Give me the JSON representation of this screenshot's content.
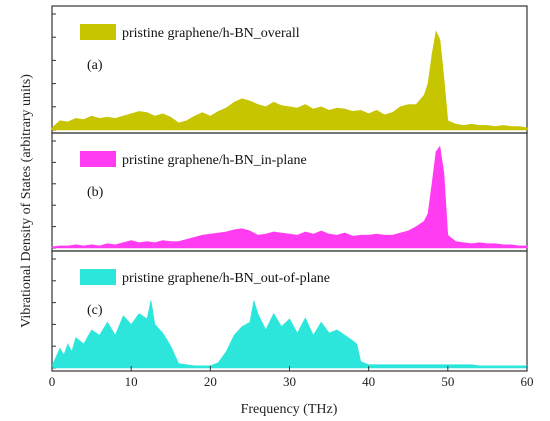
{
  "chart_data": {
    "type": "area",
    "xlabel": "Frequency (THz)",
    "ylabel": "Vibrational Density of States (arbitrary units)",
    "xlim": [
      0,
      60
    ],
    "xticks": [
      "0",
      "10",
      "20",
      "30",
      "40",
      "50",
      "60"
    ],
    "yticks_labeled": false,
    "grid": false,
    "panels": [
      {
        "label": "(a)",
        "legend": "pristine graphene/h-BN_overall",
        "color": "#c7c400",
        "x": [
          0,
          1,
          2,
          3,
          4,
          5,
          6,
          7,
          8,
          9,
          10,
          11,
          12,
          13,
          14,
          15,
          16,
          17,
          18,
          19,
          20,
          21,
          22,
          23,
          24,
          25,
          26,
          27,
          28,
          29,
          30,
          31,
          32,
          33,
          34,
          35,
          36,
          37,
          38,
          39,
          40,
          41,
          42,
          43,
          44,
          45,
          46,
          47,
          47.5,
          48,
          48.5,
          49,
          49.5,
          50,
          51,
          52,
          53,
          54,
          55,
          56,
          57,
          58,
          59,
          60
        ],
        "y": [
          0.02,
          0.08,
          0.07,
          0.1,
          0.09,
          0.12,
          0.1,
          0.11,
          0.1,
          0.12,
          0.14,
          0.16,
          0.15,
          0.12,
          0.14,
          0.11,
          0.06,
          0.08,
          0.12,
          0.15,
          0.12,
          0.16,
          0.19,
          0.24,
          0.27,
          0.25,
          0.22,
          0.2,
          0.24,
          0.21,
          0.2,
          0.19,
          0.22,
          0.18,
          0.2,
          0.17,
          0.19,
          0.18,
          0.16,
          0.17,
          0.14,
          0.17,
          0.13,
          0.15,
          0.2,
          0.22,
          0.22,
          0.3,
          0.4,
          0.65,
          0.85,
          0.78,
          0.45,
          0.08,
          0.05,
          0.04,
          0.05,
          0.04,
          0.04,
          0.03,
          0.04,
          0.03,
          0.03,
          0.02
        ]
      },
      {
        "label": "(b)",
        "legend": "pristine graphene/h-BN_in-plane",
        "color": "#ff3cf2",
        "x": [
          0,
          1,
          2,
          3,
          4,
          5,
          6,
          7,
          8,
          9,
          10,
          11,
          12,
          13,
          14,
          15,
          16,
          17,
          18,
          19,
          20,
          21,
          22,
          23,
          24,
          25,
          26,
          27,
          28,
          29,
          30,
          31,
          32,
          33,
          34,
          35,
          36,
          37,
          38,
          39,
          40,
          41,
          42,
          43,
          44,
          45,
          46,
          47,
          47.5,
          48,
          48.5,
          49,
          49.5,
          50,
          51,
          52,
          53,
          54,
          55,
          56,
          57,
          58,
          59,
          60
        ],
        "y": [
          0.01,
          0.02,
          0.02,
          0.03,
          0.02,
          0.03,
          0.02,
          0.04,
          0.03,
          0.05,
          0.07,
          0.05,
          0.06,
          0.05,
          0.07,
          0.06,
          0.06,
          0.08,
          0.1,
          0.12,
          0.13,
          0.14,
          0.15,
          0.17,
          0.18,
          0.16,
          0.12,
          0.13,
          0.15,
          0.14,
          0.13,
          0.12,
          0.15,
          0.13,
          0.16,
          0.13,
          0.12,
          0.14,
          0.11,
          0.12,
          0.12,
          0.13,
          0.12,
          0.12,
          0.14,
          0.16,
          0.2,
          0.25,
          0.32,
          0.6,
          0.9,
          0.95,
          0.7,
          0.12,
          0.06,
          0.05,
          0.04,
          0.05,
          0.04,
          0.04,
          0.03,
          0.03,
          0.02,
          0.02
        ]
      },
      {
        "label": "(c)",
        "legend": "pristine graphene/h-BN_out-of-plane",
        "color": "#2de6db",
        "x": [
          0,
          0.5,
          1,
          1.5,
          2,
          2.5,
          3,
          4,
          5,
          6,
          7,
          8,
          9,
          10,
          11,
          12,
          12.5,
          13,
          14,
          15,
          16,
          17,
          18,
          19,
          20,
          21,
          22,
          23,
          24,
          25,
          25.5,
          26,
          27,
          28,
          29,
          30,
          31,
          32,
          33,
          34,
          35,
          36,
          37,
          38,
          38.5,
          39,
          40,
          41,
          42,
          43,
          44,
          45,
          46,
          47,
          48,
          49,
          50,
          51,
          52,
          53,
          54,
          55,
          56,
          57,
          58,
          59,
          60
        ],
        "y": [
          0.02,
          0.1,
          0.18,
          0.12,
          0.22,
          0.15,
          0.28,
          0.22,
          0.35,
          0.3,
          0.42,
          0.3,
          0.48,
          0.4,
          0.5,
          0.45,
          0.62,
          0.4,
          0.32,
          0.2,
          0.04,
          0.03,
          0.02,
          0.02,
          0.02,
          0.05,
          0.15,
          0.3,
          0.38,
          0.42,
          0.62,
          0.5,
          0.35,
          0.5,
          0.38,
          0.45,
          0.32,
          0.46,
          0.3,
          0.42,
          0.32,
          0.35,
          0.3,
          0.25,
          0.22,
          0.06,
          0.03,
          0.03,
          0.03,
          0.03,
          0.03,
          0.03,
          0.03,
          0.03,
          0.03,
          0.03,
          0.03,
          0.03,
          0.03,
          0.03,
          0.02,
          0.02,
          0.02,
          0.02,
          0.02,
          0.02,
          0.02
        ]
      }
    ]
  }
}
